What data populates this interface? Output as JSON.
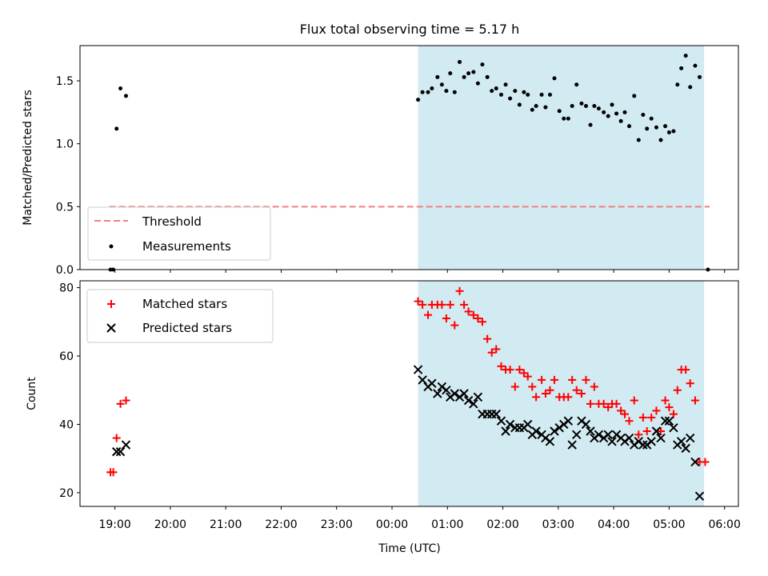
{
  "figure": {
    "title": "Flux total observing time = 5.17 h"
  },
  "chart_data": [
    {
      "type": "scatter",
      "panel": "top",
      "xlabel": "",
      "ylabel": "Matched/Predicted stars",
      "xlim": [
        -0.63,
        11.25
      ],
      "ylim": [
        0,
        1.78
      ],
      "yticks": [
        "0.0",
        "0.5",
        "1.0",
        "1.5"
      ],
      "shaded_region": {
        "x_start": 5.47,
        "x_end": 10.63,
        "color": "#add8e6"
      },
      "legend": {
        "placement": "lower-left",
        "entries": [
          {
            "label": "Threshold",
            "marker": "dashed-line",
            "color": "#f08080"
          },
          {
            "label": "Measurements",
            "marker": "dot",
            "color": "#000000"
          }
        ]
      },
      "threshold": {
        "name": "Threshold",
        "x_start": -0.1,
        "x_end": 10.73,
        "y": 0.5,
        "color": "#f08080",
        "style": "dashed"
      },
      "series": [
        {
          "name": "Measurements",
          "marker": "dot",
          "color": "#000000",
          "points": [
            [
              -0.08,
              0.0
            ],
            [
              -0.03,
              0.0
            ],
            [
              0.03,
              1.12
            ],
            [
              0.1,
              1.44
            ],
            [
              0.2,
              1.38
            ],
            [
              5.47,
              1.35
            ],
            [
              5.55,
              1.41
            ],
            [
              5.65,
              1.41
            ],
            [
              5.72,
              1.44
            ],
            [
              5.82,
              1.53
            ],
            [
              5.9,
              1.47
            ],
            [
              5.98,
              1.42
            ],
            [
              6.05,
              1.56
            ],
            [
              6.13,
              1.41
            ],
            [
              6.22,
              1.65
            ],
            [
              6.3,
              1.53
            ],
            [
              6.38,
              1.56
            ],
            [
              6.47,
              1.57
            ],
            [
              6.55,
              1.48
            ],
            [
              6.63,
              1.63
            ],
            [
              6.72,
              1.53
            ],
            [
              6.8,
              1.42
            ],
            [
              6.88,
              1.44
            ],
            [
              6.97,
              1.39
            ],
            [
              7.05,
              1.47
            ],
            [
              7.13,
              1.36
            ],
            [
              7.22,
              1.42
            ],
            [
              7.3,
              1.31
            ],
            [
              7.38,
              1.41
            ],
            [
              7.45,
              1.39
            ],
            [
              7.53,
              1.27
            ],
            [
              7.6,
              1.3
            ],
            [
              7.7,
              1.39
            ],
            [
              7.77,
              1.29
            ],
            [
              7.85,
              1.39
            ],
            [
              7.93,
              1.52
            ],
            [
              8.02,
              1.26
            ],
            [
              8.1,
              1.2
            ],
            [
              8.18,
              1.2
            ],
            [
              8.25,
              1.3
            ],
            [
              8.33,
              1.47
            ],
            [
              8.42,
              1.32
            ],
            [
              8.5,
              1.3
            ],
            [
              8.58,
              1.15
            ],
            [
              8.65,
              1.3
            ],
            [
              8.73,
              1.28
            ],
            [
              8.82,
              1.25
            ],
            [
              8.9,
              1.22
            ],
            [
              8.97,
              1.31
            ],
            [
              9.05,
              1.24
            ],
            [
              9.13,
              1.18
            ],
            [
              9.2,
              1.25
            ],
            [
              9.28,
              1.14
            ],
            [
              9.37,
              1.38
            ],
            [
              9.45,
              1.03
            ],
            [
              9.53,
              1.23
            ],
            [
              9.6,
              1.12
            ],
            [
              9.68,
              1.2
            ],
            [
              9.77,
              1.13
            ],
            [
              9.85,
              1.03
            ],
            [
              9.93,
              1.14
            ],
            [
              10.0,
              1.09
            ],
            [
              10.08,
              1.1
            ],
            [
              10.15,
              1.47
            ],
            [
              10.22,
              1.6
            ],
            [
              10.3,
              1.7
            ],
            [
              10.38,
              1.45
            ],
            [
              10.47,
              1.62
            ],
            [
              10.55,
              1.53
            ],
            [
              10.7,
              0.0
            ]
          ]
        }
      ]
    },
    {
      "type": "scatter",
      "panel": "bottom",
      "xlabel": "Time (UTC)",
      "ylabel": "Count",
      "xlim": [
        -0.63,
        11.25
      ],
      "ylim": [
        16.0,
        82.0
      ],
      "yticks": [
        "20",
        "40",
        "60",
        "80"
      ],
      "xticks": [
        "19:00",
        "20:00",
        "21:00",
        "22:00",
        "23:00",
        "00:00",
        "01:00",
        "02:00",
        "03:00",
        "04:00",
        "05:00",
        "06:00"
      ],
      "shaded_region": {
        "x_start": 5.47,
        "x_end": 10.63,
        "color": "#add8e6"
      },
      "legend": {
        "placement": "upper-left",
        "entries": [
          {
            "label": "Matched stars",
            "marker": "plus",
            "color": "#ff0000"
          },
          {
            "label": "Predicted stars",
            "marker": "cross",
            "color": "#000000"
          }
        ]
      },
      "series": [
        {
          "name": "Matched stars",
          "marker": "plus",
          "color": "#ff0000",
          "points": [
            [
              -0.08,
              26
            ],
            [
              -0.03,
              26
            ],
            [
              0.03,
              36
            ],
            [
              0.1,
              46
            ],
            [
              0.2,
              47
            ],
            [
              5.47,
              76
            ],
            [
              5.55,
              75
            ],
            [
              5.65,
              72
            ],
            [
              5.72,
              75
            ],
            [
              5.82,
              75
            ],
            [
              5.9,
              75
            ],
            [
              5.98,
              71
            ],
            [
              6.05,
              75
            ],
            [
              6.13,
              69
            ],
            [
              6.22,
              79
            ],
            [
              6.3,
              75
            ],
            [
              6.38,
              73
            ],
            [
              6.47,
              72
            ],
            [
              6.55,
              71
            ],
            [
              6.63,
              70
            ],
            [
              6.72,
              65
            ],
            [
              6.8,
              61
            ],
            [
              6.88,
              62
            ],
            [
              6.97,
              57
            ],
            [
              7.05,
              56
            ],
            [
              7.13,
              56
            ],
            [
              7.22,
              51
            ],
            [
              7.3,
              56
            ],
            [
              7.38,
              55
            ],
            [
              7.45,
              54
            ],
            [
              7.53,
              51
            ],
            [
              7.6,
              48
            ],
            [
              7.7,
              53
            ],
            [
              7.77,
              49
            ],
            [
              7.85,
              50
            ],
            [
              7.93,
              53
            ],
            [
              8.02,
              48
            ],
            [
              8.1,
              48
            ],
            [
              8.18,
              48
            ],
            [
              8.25,
              53
            ],
            [
              8.33,
              50
            ],
            [
              8.42,
              49
            ],
            [
              8.5,
              53
            ],
            [
              8.58,
              46
            ],
            [
              8.65,
              51
            ],
            [
              8.73,
              46
            ],
            [
              8.82,
              46
            ],
            [
              8.9,
              45
            ],
            [
              8.97,
              46
            ],
            [
              9.05,
              46
            ],
            [
              9.13,
              44
            ],
            [
              9.2,
              43
            ],
            [
              9.28,
              41
            ],
            [
              9.37,
              47
            ],
            [
              9.45,
              37
            ],
            [
              9.53,
              42
            ],
            [
              9.6,
              38
            ],
            [
              9.68,
              42
            ],
            [
              9.77,
              44
            ],
            [
              9.85,
              38
            ],
            [
              9.93,
              47
            ],
            [
              10.0,
              45
            ],
            [
              10.08,
              43
            ],
            [
              10.15,
              50
            ],
            [
              10.22,
              56
            ],
            [
              10.3,
              56
            ],
            [
              10.38,
              52
            ],
            [
              10.47,
              47
            ],
            [
              10.55,
              29
            ],
            [
              10.65,
              29
            ]
          ]
        },
        {
          "name": "Predicted stars",
          "marker": "cross",
          "color": "#000000",
          "points": [
            [
              0.03,
              32
            ],
            [
              0.1,
              32
            ],
            [
              0.2,
              34
            ],
            [
              5.47,
              56
            ],
            [
              5.55,
              53
            ],
            [
              5.65,
              51
            ],
            [
              5.72,
              52
            ],
            [
              5.82,
              49
            ],
            [
              5.9,
              51
            ],
            [
              5.98,
              50
            ],
            [
              6.05,
              48
            ],
            [
              6.13,
              49
            ],
            [
              6.22,
              48
            ],
            [
              6.3,
              49
            ],
            [
              6.38,
              47
            ],
            [
              6.47,
              46
            ],
            [
              6.55,
              48
            ],
            [
              6.63,
              43
            ],
            [
              6.72,
              43
            ],
            [
              6.8,
              43
            ],
            [
              6.88,
              43
            ],
            [
              6.97,
              41
            ],
            [
              7.05,
              38
            ],
            [
              7.13,
              40
            ],
            [
              7.22,
              39
            ],
            [
              7.3,
              39
            ],
            [
              7.38,
              39
            ],
            [
              7.45,
              40
            ],
            [
              7.53,
              37
            ],
            [
              7.6,
              38
            ],
            [
              7.7,
              37
            ],
            [
              7.77,
              36
            ],
            [
              7.85,
              35
            ],
            [
              7.93,
              38
            ],
            [
              8.02,
              39
            ],
            [
              8.1,
              40
            ],
            [
              8.18,
              41
            ],
            [
              8.25,
              34
            ],
            [
              8.33,
              37
            ],
            [
              8.42,
              41
            ],
            [
              8.5,
              40
            ],
            [
              8.58,
              38
            ],
            [
              8.65,
              36
            ],
            [
              8.73,
              37
            ],
            [
              8.82,
              36
            ],
            [
              8.9,
              37
            ],
            [
              8.97,
              35
            ],
            [
              9.05,
              37
            ],
            [
              9.13,
              36
            ],
            [
              9.2,
              35
            ],
            [
              9.28,
              36
            ],
            [
              9.37,
              34
            ],
            [
              9.45,
              35
            ],
            [
              9.53,
              34
            ],
            [
              9.6,
              34
            ],
            [
              9.68,
              35
            ],
            [
              9.77,
              38
            ],
            [
              9.85,
              36
            ],
            [
              9.93,
              41
            ],
            [
              10.0,
              41
            ],
            [
              10.08,
              39
            ],
            [
              10.15,
              34
            ],
            [
              10.22,
              35
            ],
            [
              10.3,
              33
            ],
            [
              10.38,
              36
            ],
            [
              10.47,
              29
            ],
            [
              10.55,
              19
            ]
          ]
        }
      ]
    }
  ]
}
